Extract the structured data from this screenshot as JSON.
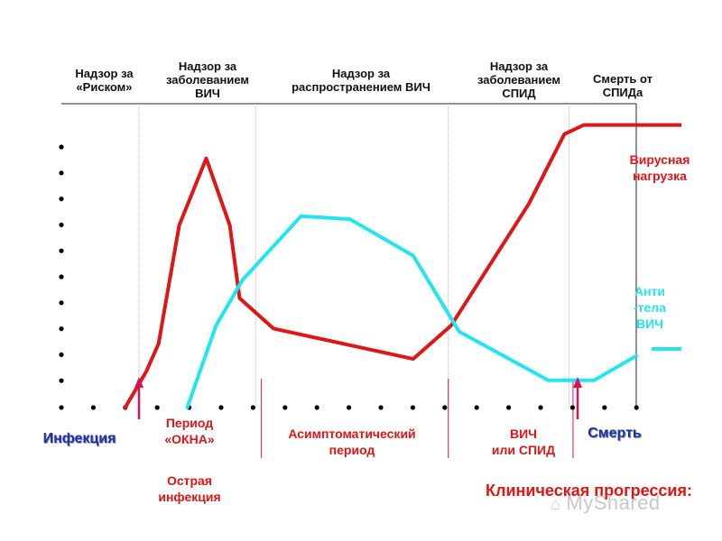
{
  "chart_data": {
    "type": "line",
    "title": "Клиническая прогрессия:",
    "x_range": [
      0,
      100
    ],
    "y_range": [
      0,
      100
    ],
    "stage_headers": [
      "Надзор за\n«Риском»",
      "Надзор за\nзаболеванием\nВИЧ",
      "Надзор за\nраспространением ВИЧ",
      "Надзор за\nзаболеванием\nСПИД",
      "Смерть от\nСПИДа"
    ],
    "stage_dividers_x": [
      13.5,
      33.8,
      67.3,
      88.3
    ],
    "period_markers_x": [
      34.8,
      67.3,
      89.0
    ],
    "event_arrows": [
      {
        "label": "Инфекция",
        "x": 13.5,
        "color": "#d4145a"
      },
      {
        "label": "Смерть",
        "x": 89.8,
        "color": "#d4145a"
      }
    ],
    "series": [
      {
        "name": "Вирусная нагрузка",
        "color": "#e01515",
        "x": [
          11.1,
          14.8,
          16.9,
          20.5,
          25.2,
          29.3,
          31.0,
          36.9,
          61.2,
          67.8,
          81.3,
          87.5,
          90.9,
          100
        ],
        "y": [
          0,
          12,
          21,
          60,
          82,
          60,
          36,
          26,
          16,
          27,
          67,
          90,
          93,
          93
        ]
      },
      {
        "name": "Антитела ВИЧ",
        "color": "#23e5ee",
        "x": [
          21.9,
          26.9,
          31.5,
          41.7,
          50.2,
          61.2,
          69.2,
          84.7,
          92.7,
          100
        ],
        "y": [
          0,
          27,
          42,
          63,
          62,
          50,
          25,
          9,
          9,
          17
        ]
      }
    ],
    "series_labels": [
      "Вирусная\nнагрузка",
      "Анти\n-тела\nВИЧ"
    ],
    "period_labels": [
      "Период\n«ОКНА»",
      "Асимптоматический\nпериод",
      "ВИЧ\nили СПИД"
    ],
    "sub_label": "Острая\nинфекция"
  },
  "watermark": "MyShared"
}
